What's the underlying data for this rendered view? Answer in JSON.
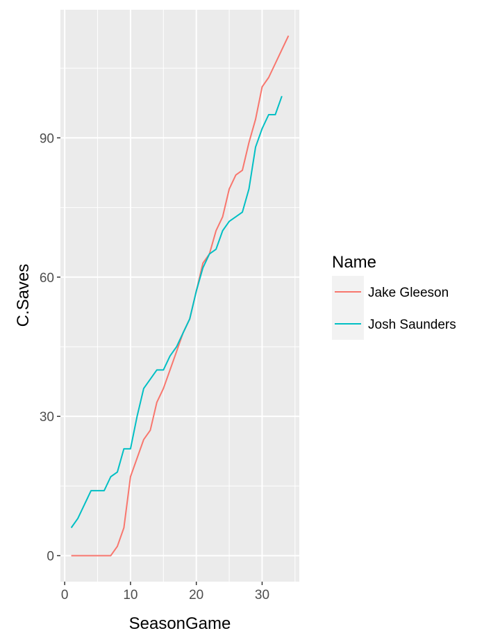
{
  "chart_data": {
    "type": "line",
    "title": "",
    "xlabel": "SeasonGame",
    "ylabel": "C.Saves",
    "xlim": [
      -0.65,
      35.65
    ],
    "ylim": [
      -5.6,
      117.6
    ],
    "x_ticks": [
      0,
      10,
      20,
      30
    ],
    "x_tick_labels": [
      "0",
      "10",
      "20",
      "30"
    ],
    "y_ticks": [
      0,
      30,
      60,
      90
    ],
    "y_tick_labels": [
      "0",
      "30",
      "60",
      "90"
    ],
    "grid": true,
    "legend": {
      "title": "Name",
      "position": "right"
    },
    "series": [
      {
        "name": "Jake Gleeson",
        "color": "#F8766D",
        "x": [
          1,
          2,
          3,
          4,
          5,
          6,
          7,
          8,
          9,
          10,
          11,
          12,
          13,
          14,
          15,
          16,
          17,
          18,
          19,
          20,
          21,
          22,
          23,
          24,
          25,
          26,
          27,
          28,
          29,
          30,
          31,
          32,
          33,
          34
        ],
        "y": [
          0,
          0,
          0,
          0,
          0,
          0,
          0,
          2,
          6,
          17,
          21,
          25,
          27,
          33,
          36,
          40,
          44,
          48,
          51,
          57,
          63,
          65,
          70,
          73,
          79,
          82,
          83,
          89,
          94,
          101,
          103,
          106,
          109,
          112
        ]
      },
      {
        "name": "Josh Saunders",
        "color": "#00BFC4",
        "x": [
          1,
          2,
          3,
          4,
          5,
          6,
          7,
          8,
          9,
          10,
          11,
          12,
          13,
          14,
          15,
          16,
          17,
          18,
          19,
          20,
          21,
          22,
          23,
          24,
          25,
          26,
          27,
          28,
          29,
          30,
          31,
          32,
          33
        ],
        "y": [
          6,
          8,
          11,
          14,
          14,
          14,
          17,
          18,
          23,
          23,
          30,
          36,
          38,
          40,
          40,
          43,
          45,
          48,
          51,
          57,
          62,
          65,
          66,
          70,
          72,
          73,
          74,
          79,
          88,
          92,
          95,
          95,
          99
        ]
      }
    ]
  }
}
